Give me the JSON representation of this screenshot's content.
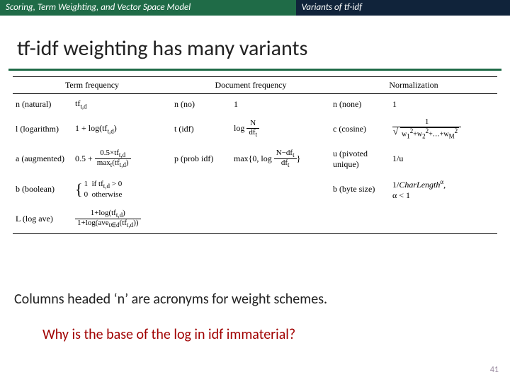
{
  "topbar": {
    "left": "Scoring, Term Weighting, and Vector Space Model",
    "right": "Variants of tf-idf"
  },
  "title": "tf-idf weighting has many variants",
  "headers": {
    "tf": "Term frequency",
    "df": "Document frequency",
    "norm": "Normalization"
  },
  "rows": {
    "r1": {
      "tf_label": "n (natural)",
      "df_label": "n (no)",
      "df_formula": "1",
      "norm_label": "n (none)",
      "norm_formula": "1"
    },
    "r2": {
      "tf_label": "l (logarithm)",
      "df_label": "t (idf)",
      "norm_label": "c (cosine)"
    },
    "r3": {
      "tf_label": "a (augmented)",
      "df_label": "p (prob idf)",
      "norm_label": "u (pivoted unique)",
      "norm_formula": "1/u"
    },
    "r4": {
      "tf_label": "b (boolean)",
      "norm_label": "b (byte size)"
    },
    "r5": {
      "tf_label": "L (log ave)"
    }
  },
  "caption": "Columns headed ‘n’ are acronyms for weight schemes.",
  "question": "Why is the base of the log in idf immaterial?",
  "pagenum": "41",
  "colors": {
    "topbar_left_bg": "#1f6b47",
    "topbar_right_bg": "#10233a",
    "underline": "#1f6b47",
    "question_color": "#a00000"
  }
}
